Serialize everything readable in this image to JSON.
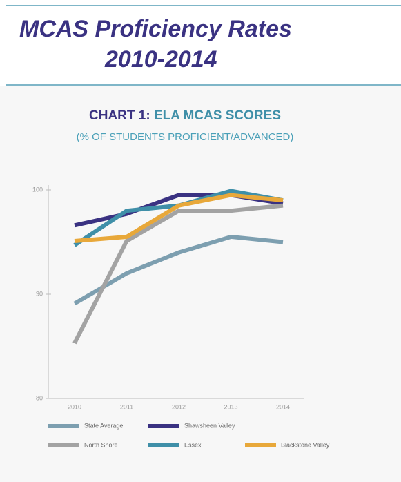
{
  "header": {
    "title_lines": [
      "MCAS Proficiency Rates",
      "2010-2014"
    ]
  },
  "chart_data": {
    "type": "line",
    "title_parts": [
      "CHART 1:",
      "ELA MCAS SCORES"
    ],
    "subtitle": "(% OF STUDENTS PROFICIENT/ADVANCED)",
    "categories": [
      "2010",
      "2011",
      "2012",
      "2013",
      "2014"
    ],
    "ylim": [
      80,
      100
    ],
    "yticks": [
      80,
      90,
      100
    ],
    "series": [
      {
        "name": "State Average",
        "color": "#7d9fb0",
        "values": [
          89.1,
          92.0,
          94.0,
          95.5,
          95.0
        ]
      },
      {
        "name": "Shawsheen Valley",
        "color": "#3a3282",
        "values": [
          96.6,
          97.7,
          99.5,
          99.5,
          98.7
        ]
      },
      {
        "name": "North Shore",
        "color": "#a3a3a3",
        "values": [
          85.3,
          95.1,
          98.0,
          98.0,
          98.5
        ]
      },
      {
        "name": "Essex",
        "color": "#3f8fa8",
        "values": [
          94.7,
          98.0,
          98.5,
          99.9,
          99.0
        ]
      },
      {
        "name": "Blackstone Valley",
        "color": "#e8a83a",
        "values": [
          95.1,
          95.5,
          98.5,
          99.5,
          99.0
        ]
      }
    ]
  }
}
